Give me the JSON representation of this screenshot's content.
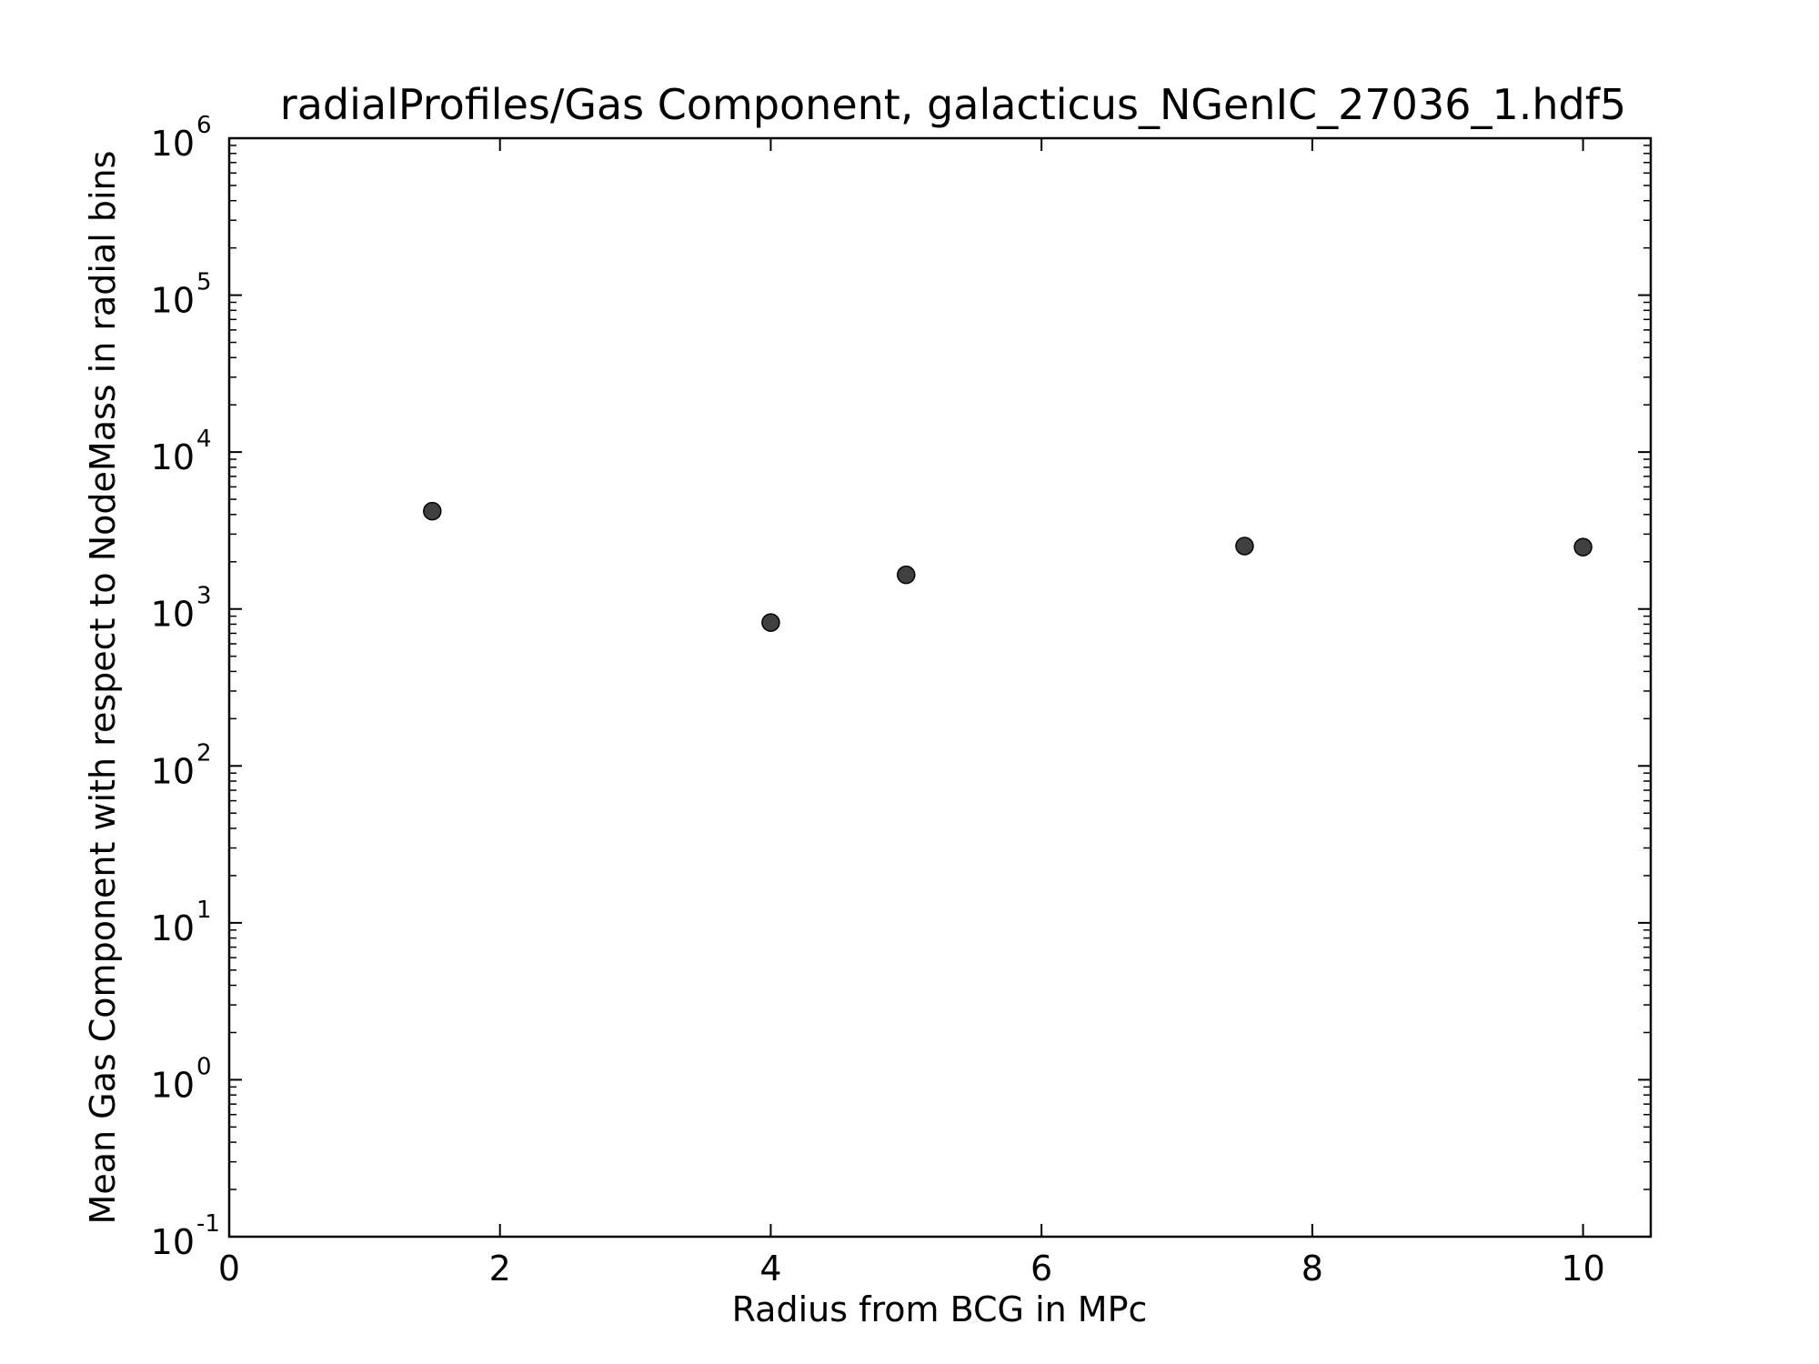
{
  "chart_data": {
    "type": "scatter",
    "title": "radialProfiles/Gas Component, galacticus_NGenIC_27036_1.hdf5",
    "xlabel": "Radius from BCG in MPc",
    "ylabel": "Mean Gas Component with respect to NodeMass in radial bins",
    "xlim": [
      0,
      10.5
    ],
    "ylim": [
      0.1,
      1000000
    ],
    "yscale": "log",
    "grid": false,
    "x_ticks": [
      {
        "value": 0,
        "label": "0"
      },
      {
        "value": 2,
        "label": "2"
      },
      {
        "value": 4,
        "label": "4"
      },
      {
        "value": 6,
        "label": "6"
      },
      {
        "value": 8,
        "label": "8"
      },
      {
        "value": 10,
        "label": "10"
      }
    ],
    "y_ticks": [
      {
        "value": 0.1,
        "base": "10",
        "exp": "-1"
      },
      {
        "value": 1,
        "base": "10",
        "exp": "0"
      },
      {
        "value": 10,
        "base": "10",
        "exp": "1"
      },
      {
        "value": 100,
        "base": "10",
        "exp": "2"
      },
      {
        "value": 1000,
        "base": "10",
        "exp": "3"
      },
      {
        "value": 10000,
        "base": "10",
        "exp": "4"
      },
      {
        "value": 100000,
        "base": "10",
        "exp": "5"
      },
      {
        "value": 1000000,
        "base": "10",
        "exp": "6"
      }
    ],
    "marker_color": "#404040",
    "points": [
      {
        "x": 1.5,
        "y": 4200
      },
      {
        "x": 4,
        "y": 820
      },
      {
        "x": 5,
        "y": 1650
      },
      {
        "x": 7.5,
        "y": 2520
      },
      {
        "x": 10,
        "y": 2480
      }
    ]
  }
}
